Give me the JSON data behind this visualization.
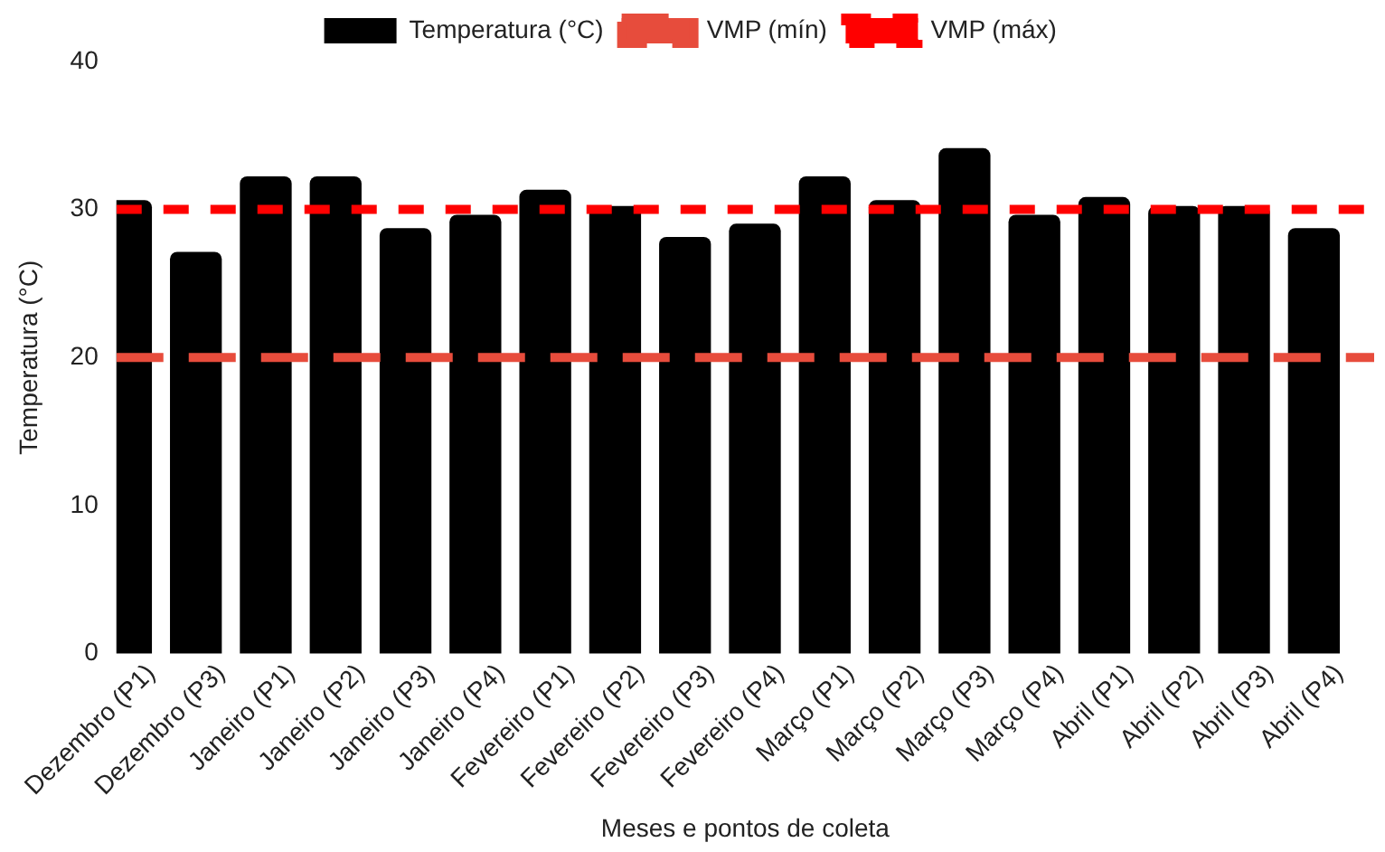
{
  "chart_data": {
    "type": "bar",
    "xlabel": "Meses e pontos de coleta",
    "ylabel": "Temperatura (°C)",
    "categories": [
      "Dezembro (P1)",
      "Dezembro (P3)",
      "Janeiro (P1)",
      "Janeiro (P2)",
      "Janeiro (P3)",
      "Janeiro (P4)",
      "Fevereiro (P1)",
      "Fevereiro (P2)",
      "Fevereiro (P3)",
      "Fevereiro (P4)",
      "Março (P1)",
      "Março (P2)",
      "Março (P3)",
      "Março (P4)",
      "Abril (P1)",
      "Abril (P2)",
      "Abril (P3)",
      "Abril (P4)"
    ],
    "series": [
      {
        "name": "Temperatura (°C)",
        "color": "#000000",
        "values": [
          30.6,
          27.1,
          32.2,
          32.2,
          28.7,
          29.6,
          31.3,
          30.2,
          28.1,
          29.0,
          32.2,
          30.6,
          34.1,
          29.6,
          30.8,
          30.2,
          30.2,
          28.7
        ]
      }
    ],
    "ref_lines": [
      {
        "axis": "y",
        "value": 20,
        "label": "VMP (mín)",
        "color": "#e74c3c",
        "line_style": "dashed"
      },
      {
        "axis": "y",
        "value": 30,
        "label": "VMP (máx)",
        "color": "#ff0000",
        "line_style": "dotted"
      }
    ],
    "ylim": [
      0,
      40
    ],
    "yticks": [
      0,
      10,
      20,
      30,
      40
    ],
    "grid": false,
    "legend": "top"
  }
}
